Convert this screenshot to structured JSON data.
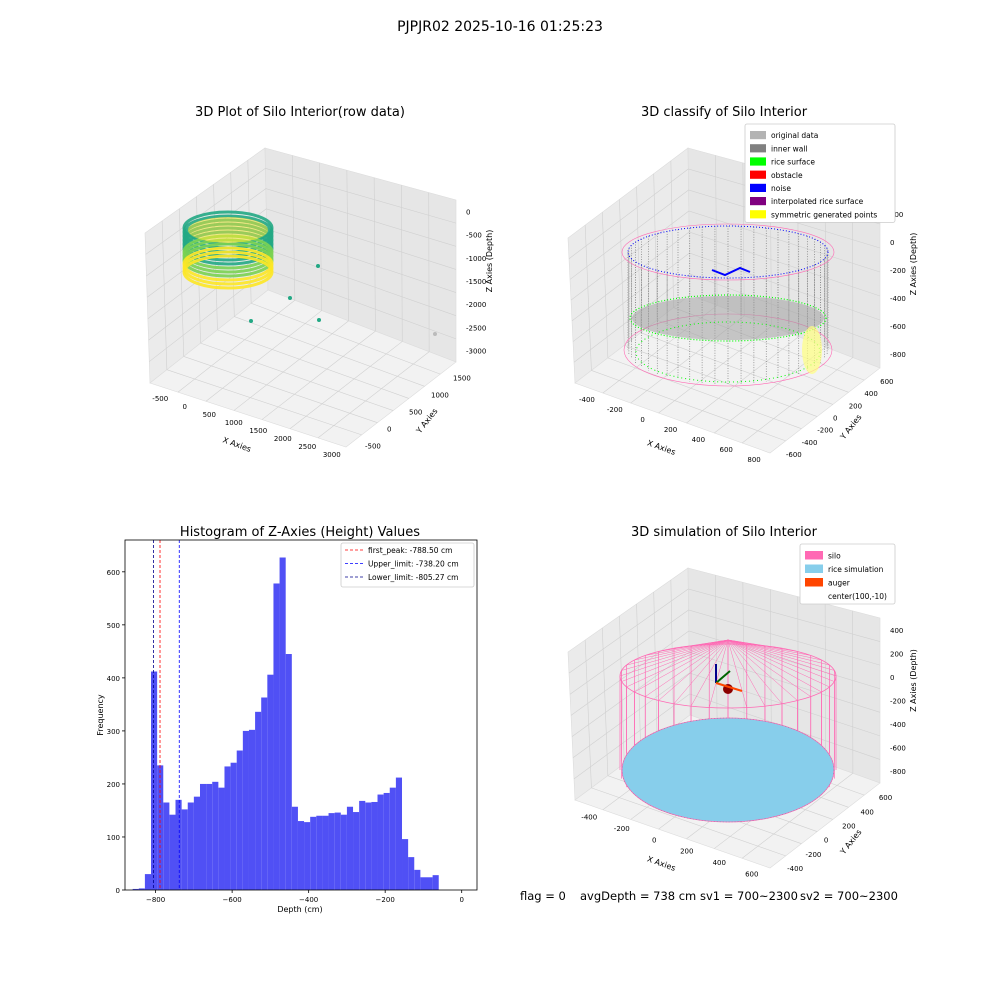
{
  "suptitle": "PJPJR02 2025-10-16 01:25:23",
  "chart_data": [
    {
      "type": "scatter",
      "title": "3D Plot of Silo Interior(row data)",
      "xlabel": "X Axies",
      "ylabel": "Y Axies",
      "zlabel": "Z Axies (Depth)",
      "x_ticks": [
        "-500",
        "0",
        "500",
        "1000",
        "1500",
        "2000",
        "2500",
        "3000"
      ],
      "y_ticks": [
        "-500",
        "0",
        "500",
        "1000",
        "1500"
      ],
      "z_ticks": [
        "0",
        "-500",
        "-1000",
        "-1500",
        "-2000",
        "-2500",
        "-3000"
      ],
      "colors": {
        "low": "#fde725",
        "mid": "#7ad151",
        "high": "#22a884"
      }
    },
    {
      "type": "scatter",
      "title": "3D classify of Silo Interior",
      "xlabel": "X Axies",
      "ylabel": "Y Axies",
      "zlabel": "Z Axies (Depth)",
      "x_ticks": [
        "-400",
        "-200",
        "0",
        "200",
        "400",
        "600",
        "800"
      ],
      "y_ticks": [
        "-600",
        "-400",
        "-200",
        "0",
        "200",
        "400",
        "600"
      ],
      "z_ticks": [
        "200",
        "0",
        "-200",
        "-400",
        "-600",
        "-800"
      ],
      "legend_position": "top-right",
      "legend": [
        {
          "label": "original data",
          "color": "#b3b3b3"
        },
        {
          "label": "inner wall",
          "color": "#808080"
        },
        {
          "label": "rice surface",
          "color": "#00ff00"
        },
        {
          "label": "obstacle",
          "color": "#ff0000"
        },
        {
          "label": "noise",
          "color": "#0000ff"
        },
        {
          "label": "interpolated rice surface",
          "color": "#800080"
        },
        {
          "label": "symmetric generated points",
          "color": "#ffff00"
        }
      ]
    },
    {
      "type": "bar",
      "title": "Histogram of Z-Axies (Height) Values",
      "xlabel": "Depth (cm)",
      "ylabel": "Frequency",
      "xlim": [
        -880,
        40
      ],
      "ylim": [
        0,
        660
      ],
      "x_ticks": [
        -800,
        -600,
        -400,
        -200,
        0
      ],
      "y_ticks": [
        0,
        100,
        200,
        300,
        400,
        500,
        600
      ],
      "bin_start": -860,
      "bin_width": 16,
      "color": "#5050f5",
      "values": [
        2,
        3,
        30,
        412,
        235,
        165,
        142,
        170,
        152,
        165,
        176,
        200,
        200,
        204,
        193,
        233,
        240,
        263,
        300,
        302,
        336,
        363,
        406,
        578,
        627,
        445,
        157,
        130,
        128,
        138,
        140,
        140,
        145,
        146,
        142,
        157,
        147,
        168,
        165,
        166,
        180,
        183,
        193,
        212,
        96,
        62,
        38,
        24,
        24,
        28
      ],
      "vlines": [
        {
          "label": "first_peak: -788.50 cm",
          "x": -788.5,
          "color": "#ff0000"
        },
        {
          "label": "Upper_limit: -738.20 cm",
          "x": -738.2,
          "color": "#0000ff"
        },
        {
          "label": "Lower_limit: -805.27 cm",
          "x": -805.27,
          "color": "#00008b"
        }
      ],
      "legend_position": "top-right"
    },
    {
      "type": "scatter",
      "title": "3D simulation of Silo Interior",
      "xlabel": "X Axies",
      "ylabel": "Y Axies",
      "zlabel": "Z Axies (Depth)",
      "x_ticks": [
        "-400",
        "-200",
        "0",
        "200",
        "400",
        "600"
      ],
      "y_ticks": [
        "-400",
        "-200",
        "0",
        "200",
        "400",
        "600"
      ],
      "z_ticks": [
        "400",
        "200",
        "0",
        "-200",
        "-400",
        "-600",
        "-800"
      ],
      "legend_position": "top-right",
      "legend": [
        {
          "label": "silo",
          "color": "#ff69b4"
        },
        {
          "label": "rice simulation",
          "color": "#87ceeb"
        },
        {
          "label": "auger",
          "color": "#ff4500"
        },
        {
          "label": "center(100,-10)",
          "color": ""
        }
      ]
    }
  ],
  "footer": {
    "flag": "flag = 0",
    "avg": "avgDepth = 738 cm",
    "sv1": "sv1 = 700~2300",
    "sv2": "sv2 = 700~2300"
  }
}
